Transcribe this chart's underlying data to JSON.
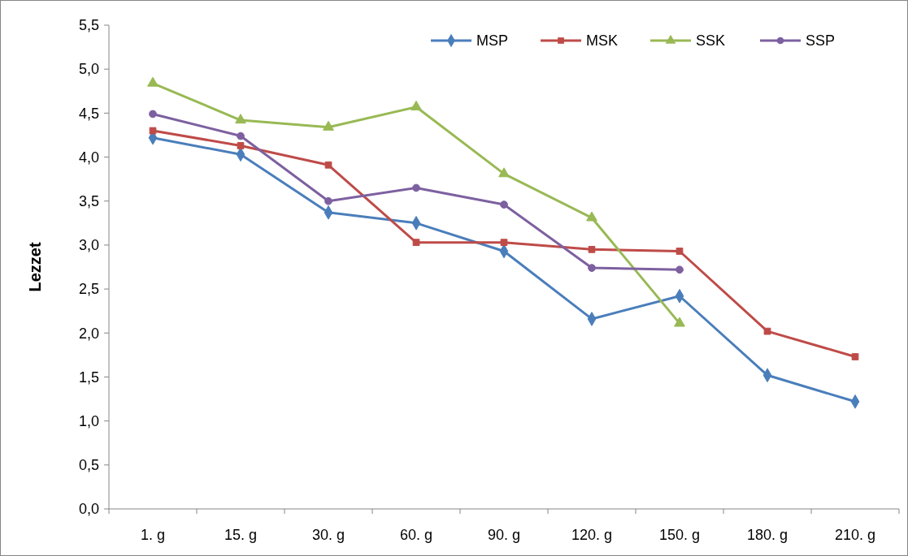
{
  "chart_data": {
    "type": "line",
    "ylabel": "Lezzet",
    "categories": [
      "1. g",
      "15. g",
      "30. g",
      "60. g",
      "90. g",
      "120. g",
      "150. g",
      "180. g",
      "210. g"
    ],
    "ylim": [
      0,
      5.5
    ],
    "yticks": [
      {
        "value": 0,
        "label": "0,0"
      },
      {
        "value": 0.5,
        "label": "0,5"
      },
      {
        "value": 1,
        "label": "1,0"
      },
      {
        "value": 1.5,
        "label": "1,5"
      },
      {
        "value": 2,
        "label": "2,0"
      },
      {
        "value": 2.5,
        "label": "2,5"
      },
      {
        "value": 3,
        "label": "3,0"
      },
      {
        "value": 3.5,
        "label": "3,5"
      },
      {
        "value": 4,
        "label": "4,0"
      },
      {
        "value": 4.5,
        "label": "4,5"
      },
      {
        "value": 5,
        "label": "5,0"
      },
      {
        "value": 5.5,
        "label": "5,5"
      }
    ],
    "grid": false,
    "legend": "top right",
    "line_style": "solid",
    "series": [
      {
        "name": "MSP",
        "color": "#4a7ebb",
        "marker": "diamond",
        "values": [
          4.22,
          4.03,
          3.37,
          3.25,
          2.93,
          2.16,
          2.42,
          1.52,
          1.22
        ]
      },
      {
        "name": "MSK",
        "color": "#be4b48",
        "marker": "square",
        "values": [
          4.3,
          4.13,
          3.91,
          3.03,
          3.03,
          2.95,
          2.93,
          2.02,
          1.73
        ]
      },
      {
        "name": "SSK",
        "color": "#98b954",
        "marker": "triangle",
        "values": [
          4.84,
          4.42,
          4.34,
          4.57,
          3.81,
          3.31,
          2.11,
          null,
          null
        ]
      },
      {
        "name": "SSP",
        "color": "#7d60a0",
        "marker": "circle",
        "values": [
          4.49,
          4.24,
          3.5,
          3.65,
          3.46,
          2.74,
          2.72,
          null,
          null
        ]
      }
    ]
  }
}
